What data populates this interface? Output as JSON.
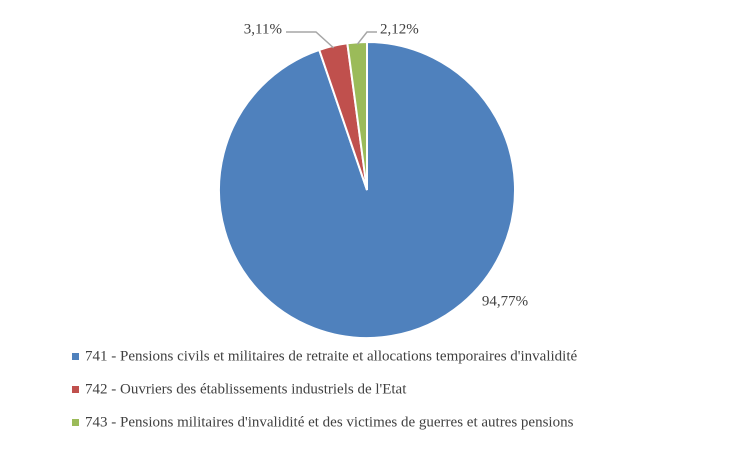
{
  "chart_data": {
    "type": "pie",
    "categories": [
      "741 - Pensions civils et militaires de retraite et allocations temporaires d'invalidité",
      "742 - Ouvriers des établissements industriels de l'Etat",
      "743 - Pensions militaires d'invalidité et des victimes de guerres et autres pensions"
    ],
    "values": [
      94.77,
      3.11,
      2.12
    ],
    "value_labels": [
      "94,77%",
      "3,11%",
      "2,12%"
    ],
    "colors": [
      "#4f81bd",
      "#c0504d",
      "#9bbb59"
    ],
    "legend": "bottom"
  }
}
